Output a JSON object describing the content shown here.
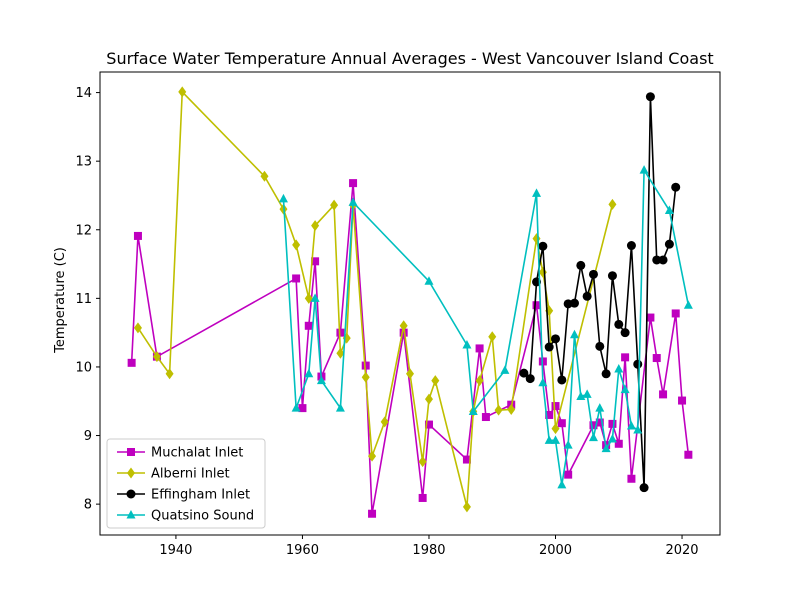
{
  "chart_data": {
    "type": "line",
    "title": "Surface Water Temperature Annual Averages - West Vancouver Island Coast",
    "xlabel": "",
    "ylabel": "Temperature (C)",
    "xlim": [
      1928,
      2026
    ],
    "ylim": [
      7.55,
      14.3
    ],
    "xticks": [
      1940,
      1960,
      1980,
      2000,
      2020
    ],
    "yticks": [
      8,
      9,
      10,
      11,
      12,
      13,
      14
    ],
    "grid": false,
    "legend_position": "lower-left",
    "series": [
      {
        "name": "Muchalat Inlet",
        "color": "#bf00bf",
        "marker": "square",
        "x": [
          1933,
          1934,
          1937,
          1959,
          1960,
          1961,
          1962,
          1963,
          1966,
          1968,
          1970,
          1971,
          1976,
          1979,
          1980,
          1986,
          1988,
          1989,
          1993,
          1997,
          1998,
          1999,
          2000,
          2001,
          2002,
          2006,
          2007,
          2008,
          2009,
          2010,
          2011,
          2012,
          2015,
          2016,
          2017,
          2019,
          2020,
          2021
        ],
        "y": [
          10.06,
          11.91,
          10.15,
          11.29,
          9.4,
          10.6,
          11.54,
          9.86,
          10.5,
          12.68,
          10.02,
          7.86,
          10.5,
          8.09,
          9.16,
          8.65,
          10.27,
          9.27,
          9.45,
          10.9,
          10.08,
          9.3,
          9.43,
          9.18,
          8.43,
          9.15,
          9.19,
          8.86,
          9.17,
          8.88,
          10.14,
          8.37,
          10.72,
          10.13,
          9.6,
          10.78,
          9.51,
          8.72
        ]
      },
      {
        "name": "Alberni Inlet",
        "color": "#bfbf00",
        "marker": "diamond",
        "x": [
          1934,
          1937,
          1939,
          1941,
          1954,
          1957,
          1959,
          1961,
          1962,
          1965,
          1966,
          1967,
          1968,
          1970,
          1971,
          1973,
          1976,
          1977,
          1979,
          1980,
          1981,
          1986,
          1987,
          1988,
          1990,
          1991,
          1993,
          1997,
          1998,
          1999,
          2000,
          2009
        ],
        "y": [
          10.57,
          10.15,
          9.9,
          14.01,
          12.78,
          12.3,
          11.78,
          11.0,
          12.06,
          12.36,
          10.2,
          10.42,
          12.36,
          9.85,
          8.7,
          9.2,
          10.6,
          9.9,
          8.62,
          9.53,
          9.8,
          7.96,
          9.35,
          9.8,
          10.44,
          9.37,
          9.38,
          11.87,
          11.38,
          10.82,
          9.1,
          12.37
        ]
      },
      {
        "name": "Effingham Inlet",
        "color": "#000000",
        "marker": "circle",
        "x": [
          1995,
          1996,
          1997,
          1998,
          1999,
          2000,
          2001,
          2002,
          2003,
          2004,
          2005,
          2006,
          2007,
          2008,
          2009,
          2010,
          2011,
          2012,
          2013,
          2014,
          2015,
          2016,
          2017,
          2018,
          2019
        ],
        "y": [
          9.91,
          9.83,
          11.24,
          11.76,
          10.29,
          10.41,
          9.81,
          10.92,
          10.93,
          11.48,
          11.03,
          11.35,
          10.3,
          9.9,
          11.33,
          10.62,
          10.5,
          11.77,
          10.04,
          8.24,
          13.94,
          11.56,
          11.56,
          11.79,
          12.62
        ]
      },
      {
        "name": "Quatsino Sound",
        "color": "#00bfbf",
        "marker": "triangle",
        "x": [
          1957,
          1959,
          1961,
          1962,
          1963,
          1966,
          1968,
          1980,
          1986,
          1987,
          1992,
          1997,
          1998,
          1999,
          2000,
          2001,
          2002,
          2003,
          2004,
          2005,
          2006,
          2007,
          2008,
          2009,
          2010,
          2011,
          2012,
          2013,
          2014,
          2018,
          2021
        ],
        "y": [
          12.45,
          9.4,
          9.9,
          11.0,
          9.8,
          9.4,
          12.4,
          11.25,
          10.32,
          9.35,
          9.95,
          12.53,
          9.77,
          8.93,
          8.93,
          8.28,
          8.86,
          10.47,
          9.57,
          9.6,
          8.97,
          9.4,
          8.81,
          8.95,
          9.97,
          9.67,
          9.14,
          9.08,
          12.87,
          12.28,
          10.9
        ]
      }
    ]
  }
}
